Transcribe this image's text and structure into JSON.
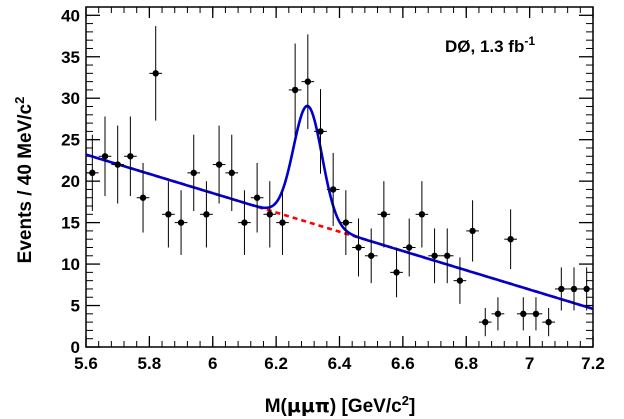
{
  "chart_data": {
    "type": "scatter",
    "xlabel_parts": [
      "M(",
      "μμπ",
      ") [GeV/c",
      "2",
      "]"
    ],
    "ylabel_parts": [
      "Events / 40  MeV/c",
      "2"
    ],
    "annotation": {
      "text": "DØ, 1.3 fb",
      "sup": "-1"
    },
    "xlim": [
      5.6,
      7.2
    ],
    "ylim": [
      0,
      41
    ],
    "xticks": [
      "5.6",
      "5.8",
      "6",
      "6.2",
      "6.4",
      "6.6",
      "6.8",
      "7",
      "7.2"
    ],
    "yticks": [
      "0",
      "5",
      "10",
      "15",
      "20",
      "25",
      "30",
      "35",
      "40"
    ],
    "x_tick_values": [
      5.6,
      5.8,
      6.0,
      6.2,
      6.4,
      6.6,
      6.8,
      7.0,
      7.2
    ],
    "y_tick_values": [
      0,
      5,
      10,
      15,
      20,
      25,
      30,
      35,
      40
    ],
    "bin_half_width": 0.02,
    "points": [
      {
        "x": 5.62,
        "y": 21,
        "err": 4.6
      },
      {
        "x": 5.66,
        "y": 23,
        "err": 4.8
      },
      {
        "x": 5.7,
        "y": 22,
        "err": 4.7
      },
      {
        "x": 5.74,
        "y": 23,
        "err": 4.8
      },
      {
        "x": 5.78,
        "y": 18,
        "err": 4.2
      },
      {
        "x": 5.82,
        "y": 33,
        "err": 5.7
      },
      {
        "x": 5.86,
        "y": 16,
        "err": 4.0
      },
      {
        "x": 5.9,
        "y": 15,
        "err": 3.9
      },
      {
        "x": 5.94,
        "y": 21,
        "err": 4.6
      },
      {
        "x": 5.98,
        "y": 16,
        "err": 4.0
      },
      {
        "x": 6.02,
        "y": 22,
        "err": 4.7
      },
      {
        "x": 6.06,
        "y": 21,
        "err": 4.6
      },
      {
        "x": 6.1,
        "y": 15,
        "err": 3.9
      },
      {
        "x": 6.14,
        "y": 18,
        "err": 4.2
      },
      {
        "x": 6.18,
        "y": 16,
        "err": 4.0
      },
      {
        "x": 6.22,
        "y": 15,
        "err": 3.9
      },
      {
        "x": 6.26,
        "y": 31,
        "err": 5.6
      },
      {
        "x": 6.3,
        "y": 32,
        "err": 5.7
      },
      {
        "x": 6.34,
        "y": 26,
        "err": 5.1
      },
      {
        "x": 6.38,
        "y": 19,
        "err": 4.4
      },
      {
        "x": 6.42,
        "y": 15,
        "err": 3.9
      },
      {
        "x": 6.46,
        "y": 12,
        "err": 3.5
      },
      {
        "x": 6.5,
        "y": 11,
        "err": 3.3
      },
      {
        "x": 6.54,
        "y": 16,
        "err": 4.0
      },
      {
        "x": 6.58,
        "y": 9,
        "err": 3.0
      },
      {
        "x": 6.62,
        "y": 12,
        "err": 3.5
      },
      {
        "x": 6.66,
        "y": 16,
        "err": 4.0
      },
      {
        "x": 6.7,
        "y": 11,
        "err": 3.3
      },
      {
        "x": 6.74,
        "y": 11,
        "err": 3.3
      },
      {
        "x": 6.78,
        "y": 8,
        "err": 2.8
      },
      {
        "x": 6.82,
        "y": 14,
        "err": 3.7
      },
      {
        "x": 6.86,
        "y": 3,
        "err": 1.7
      },
      {
        "x": 6.9,
        "y": 4,
        "err": 2.0
      },
      {
        "x": 6.94,
        "y": 13,
        "err": 3.6
      },
      {
        "x": 6.98,
        "y": 4,
        "err": 2.0
      },
      {
        "x": 7.02,
        "y": 4,
        "err": 2.0
      },
      {
        "x": 7.06,
        "y": 3,
        "err": 1.7
      },
      {
        "x": 7.1,
        "y": 7,
        "err": 2.6
      },
      {
        "x": 7.14,
        "y": 7,
        "err": 2.6
      },
      {
        "x": 7.18,
        "y": 7,
        "err": 2.6
      }
    ],
    "background_fit": {
      "type": "linear",
      "x": [
        5.6,
        7.2
      ],
      "y": [
        23.2,
        4.6
      ],
      "color": "#ff0000",
      "style": "dashed"
    },
    "signal_peak": {
      "mean": 6.3,
      "sigma": 0.045,
      "amplitude": 14.0
    },
    "total_fit_color": "#0000cc",
    "marker_color": "#000000"
  }
}
